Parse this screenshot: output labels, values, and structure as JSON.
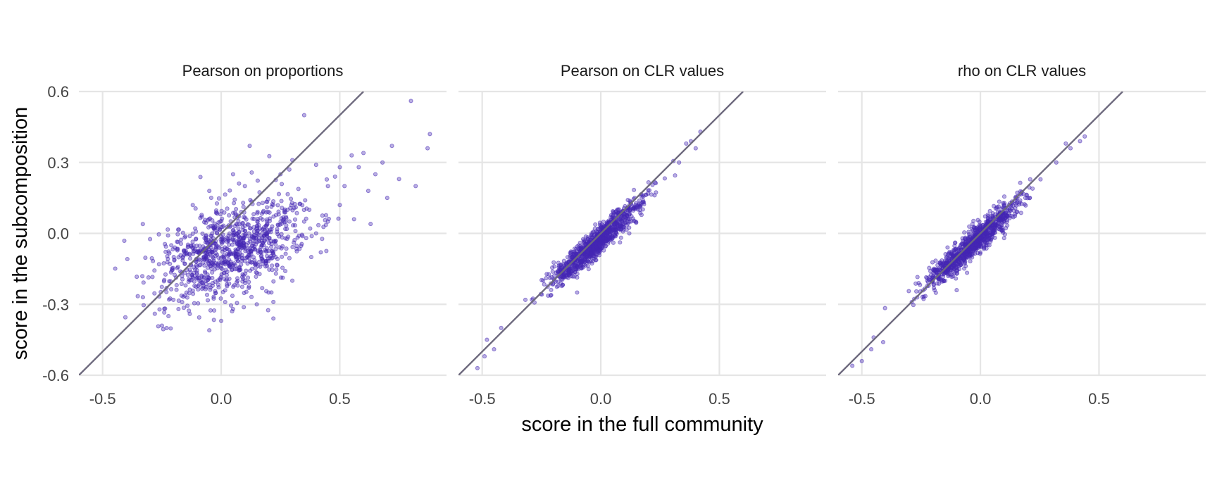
{
  "chart_data": {
    "type": "scatter",
    "xlabel": "score in the full community",
    "ylabel": "score in the subcomposition",
    "xlim": [
      -0.6,
      0.95
    ],
    "ylim": [
      -0.6,
      0.6
    ],
    "x_ticks": [
      "-0.5",
      "0.0",
      "0.5"
    ],
    "y_ticks": [
      "0.6",
      "0.3",
      "0.0",
      "-0.3",
      "-0.6"
    ],
    "grid": true,
    "reference_line": "y = x",
    "colors": {
      "points": "#4527b4",
      "reference_line": "#6e6a7e",
      "grid": "#e5e5e5"
    },
    "panels": [
      {
        "title": "Pearson on proportions",
        "points": [
          [
            0.8,
            0.56
          ],
          [
            0.88,
            0.42
          ],
          [
            0.87,
            0.36
          ],
          [
            0.82,
            0.2
          ],
          [
            0.35,
            0.5
          ],
          [
            0.12,
            0.37
          ],
          [
            0.6,
            0.34
          ],
          [
            0.72,
            0.37
          ],
          [
            0.75,
            0.23
          ],
          [
            0.52,
            0.2
          ],
          [
            0.62,
            0.18
          ],
          [
            0.56,
            0.06
          ],
          [
            0.63,
            0.04
          ],
          [
            0.42,
            -0.08
          ],
          [
            0.5,
            0.12
          ],
          [
            -0.33,
            -0.27
          ],
          [
            -0.28,
            -0.34
          ],
          [
            -0.25,
            -0.39
          ],
          [
            -0.05,
            -0.41
          ],
          [
            0.22,
            -0.29
          ],
          [
            0.22,
            -0.36
          ],
          [
            0.0,
            -0.37
          ],
          [
            0.05,
            0.25
          ],
          [
            -0.05,
            0.18
          ],
          [
            -0.12,
            0.12
          ],
          [
            -0.2,
            -0.1
          ],
          [
            0.3,
            0.31
          ],
          [
            0.4,
            0.29
          ],
          [
            0.48,
            0.24
          ],
          [
            0.45,
            0.05
          ],
          [
            0.3,
            -0.2
          ],
          [
            0.38,
            -0.1
          ],
          [
            0.15,
            -0.3
          ],
          [
            -0.18,
            -0.32
          ],
          [
            0.68,
            0.3
          ],
          [
            0.58,
            0.28
          ],
          [
            0.55,
            0.33
          ],
          [
            0.25,
            0.25
          ],
          [
            0.1,
            0.2
          ],
          [
            0.2,
            -0.25
          ],
          [
            0.35,
            0.05
          ],
          [
            0.45,
            0.2
          ],
          [
            0.65,
            0.25
          ],
          [
            0.7,
            0.15
          ],
          [
            -0.22,
            -0.28
          ],
          [
            -0.15,
            -0.22
          ],
          [
            0.05,
            -0.32
          ],
          [
            0.28,
            0.1
          ],
          [
            0.4,
            0.0
          ],
          [
            0.5,
            0.28
          ]
        ],
        "cloud": {
          "n": 950,
          "center": [
            0.05,
            -0.07
          ],
          "sd_major": 0.17,
          "sd_minor": 0.09,
          "angle_deg": 28
        }
      },
      {
        "title": "Pearson on CLR values",
        "points": [
          [
            -0.52,
            -0.57
          ],
          [
            -0.49,
            -0.52
          ],
          [
            -0.48,
            -0.45
          ],
          [
            -0.45,
            -0.49
          ],
          [
            -0.42,
            -0.4
          ],
          [
            0.42,
            0.43
          ],
          [
            0.4,
            0.36
          ],
          [
            0.38,
            0.39
          ],
          [
            0.36,
            0.38
          ],
          [
            0.33,
            0.3
          ],
          [
            0.12,
            0.0
          ],
          [
            -0.1,
            -0.25
          ]
        ],
        "cloud": {
          "n": 950,
          "center": [
            -0.02,
            -0.04
          ],
          "sd_major": 0.13,
          "sd_minor": 0.022,
          "angle_deg": 43.5
        }
      },
      {
        "title": "rho on CLR values",
        "points": [
          [
            -0.54,
            -0.56
          ],
          [
            -0.5,
            -0.54
          ],
          [
            -0.46,
            -0.49
          ],
          [
            -0.45,
            -0.44
          ],
          [
            -0.41,
            -0.46
          ],
          [
            0.44,
            0.41
          ],
          [
            0.42,
            0.39
          ],
          [
            0.38,
            0.36
          ],
          [
            0.36,
            0.38
          ],
          [
            0.32,
            0.3
          ],
          [
            0.1,
            -0.02
          ],
          [
            -0.1,
            -0.24
          ]
        ],
        "cloud": {
          "n": 950,
          "center": [
            -0.03,
            -0.04
          ],
          "sd_major": 0.13,
          "sd_minor": 0.022,
          "angle_deg": 43.5
        }
      }
    ]
  }
}
